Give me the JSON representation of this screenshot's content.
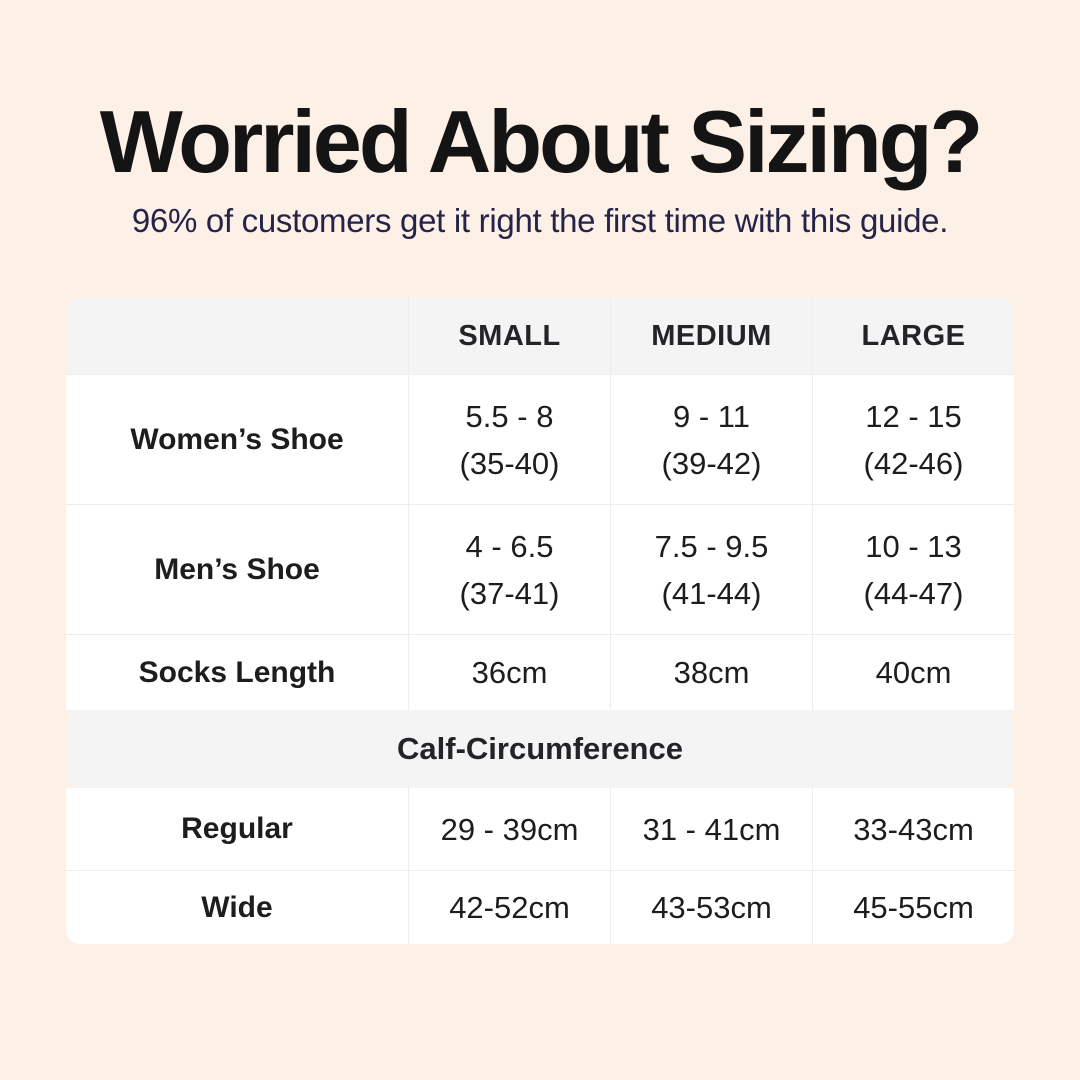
{
  "page": {
    "background_color": "#fdf0e7",
    "card_background": "#ffffff",
    "band_background": "#f4f4f5",
    "subtitle_color": "#262349",
    "title_color": "#141414"
  },
  "header": {
    "title": "Worried About Sizing?",
    "subtitle": "96% of customers get it right the first time with this guide."
  },
  "table": {
    "column_headers": [
      "SMALL",
      "MEDIUM",
      "LARGE"
    ],
    "rows": [
      {
        "label": "Women’s Shoe",
        "cells": [
          {
            "line1": "5.5 - 8",
            "line2": "(35-40)"
          },
          {
            "line1": "9 - 11",
            "line2": "(39-42)"
          },
          {
            "line1": "12 - 15",
            "line2": "(42-46)"
          }
        ]
      },
      {
        "label": "Men’s Shoe",
        "cells": [
          {
            "line1": "4 - 6.5",
            "line2": "(37-41)"
          },
          {
            "line1": "7.5 - 9.5",
            "line2": "(41-44)"
          },
          {
            "line1": "10 - 13",
            "line2": "(44-47)"
          }
        ]
      },
      {
        "label": "Socks Length",
        "cells": [
          {
            "line1": "36cm"
          },
          {
            "line1": "38cm"
          },
          {
            "line1": "40cm"
          }
        ]
      }
    ],
    "section_header": "Calf-Circumference",
    "calf_rows": [
      {
        "label": "Regular",
        "cells": [
          {
            "line1": "29 - 39cm"
          },
          {
            "line1": "31 - 41cm"
          },
          {
            "line1": "33-43cm"
          }
        ]
      },
      {
        "label": "Wide",
        "cells": [
          {
            "line1": "42-52cm"
          },
          {
            "line1": "43-53cm"
          },
          {
            "line1": "45-55cm"
          }
        ]
      }
    ]
  },
  "chart_data": {
    "type": "table",
    "title": "Worried About Sizing?",
    "subtitle": "96% of customers get it right the first time with this guide.",
    "columns": [
      "",
      "SMALL",
      "MEDIUM",
      "LARGE"
    ],
    "rows": [
      [
        "Women’s Shoe",
        "5.5 - 8 (35-40)",
        "9 - 11 (39-42)",
        "12 - 15 (42-46)"
      ],
      [
        "Men’s Shoe",
        "4 - 6.5 (37-41)",
        "7.5 - 9.5 (41-44)",
        "10 - 13 (44-47)"
      ],
      [
        "Socks Length",
        "36cm",
        "38cm",
        "40cm"
      ]
    ],
    "section_header": "Calf-Circumference",
    "section_rows": [
      [
        "Regular",
        "29 - 39cm",
        "31 - 41cm",
        "33-43cm"
      ],
      [
        "Wide",
        "42-52cm",
        "43-53cm",
        "45-55cm"
      ]
    ],
    "layout": {
      "header_row_shaded": true,
      "section_band_shaded": true,
      "grid": "light vertical and horizontal dividers"
    }
  }
}
